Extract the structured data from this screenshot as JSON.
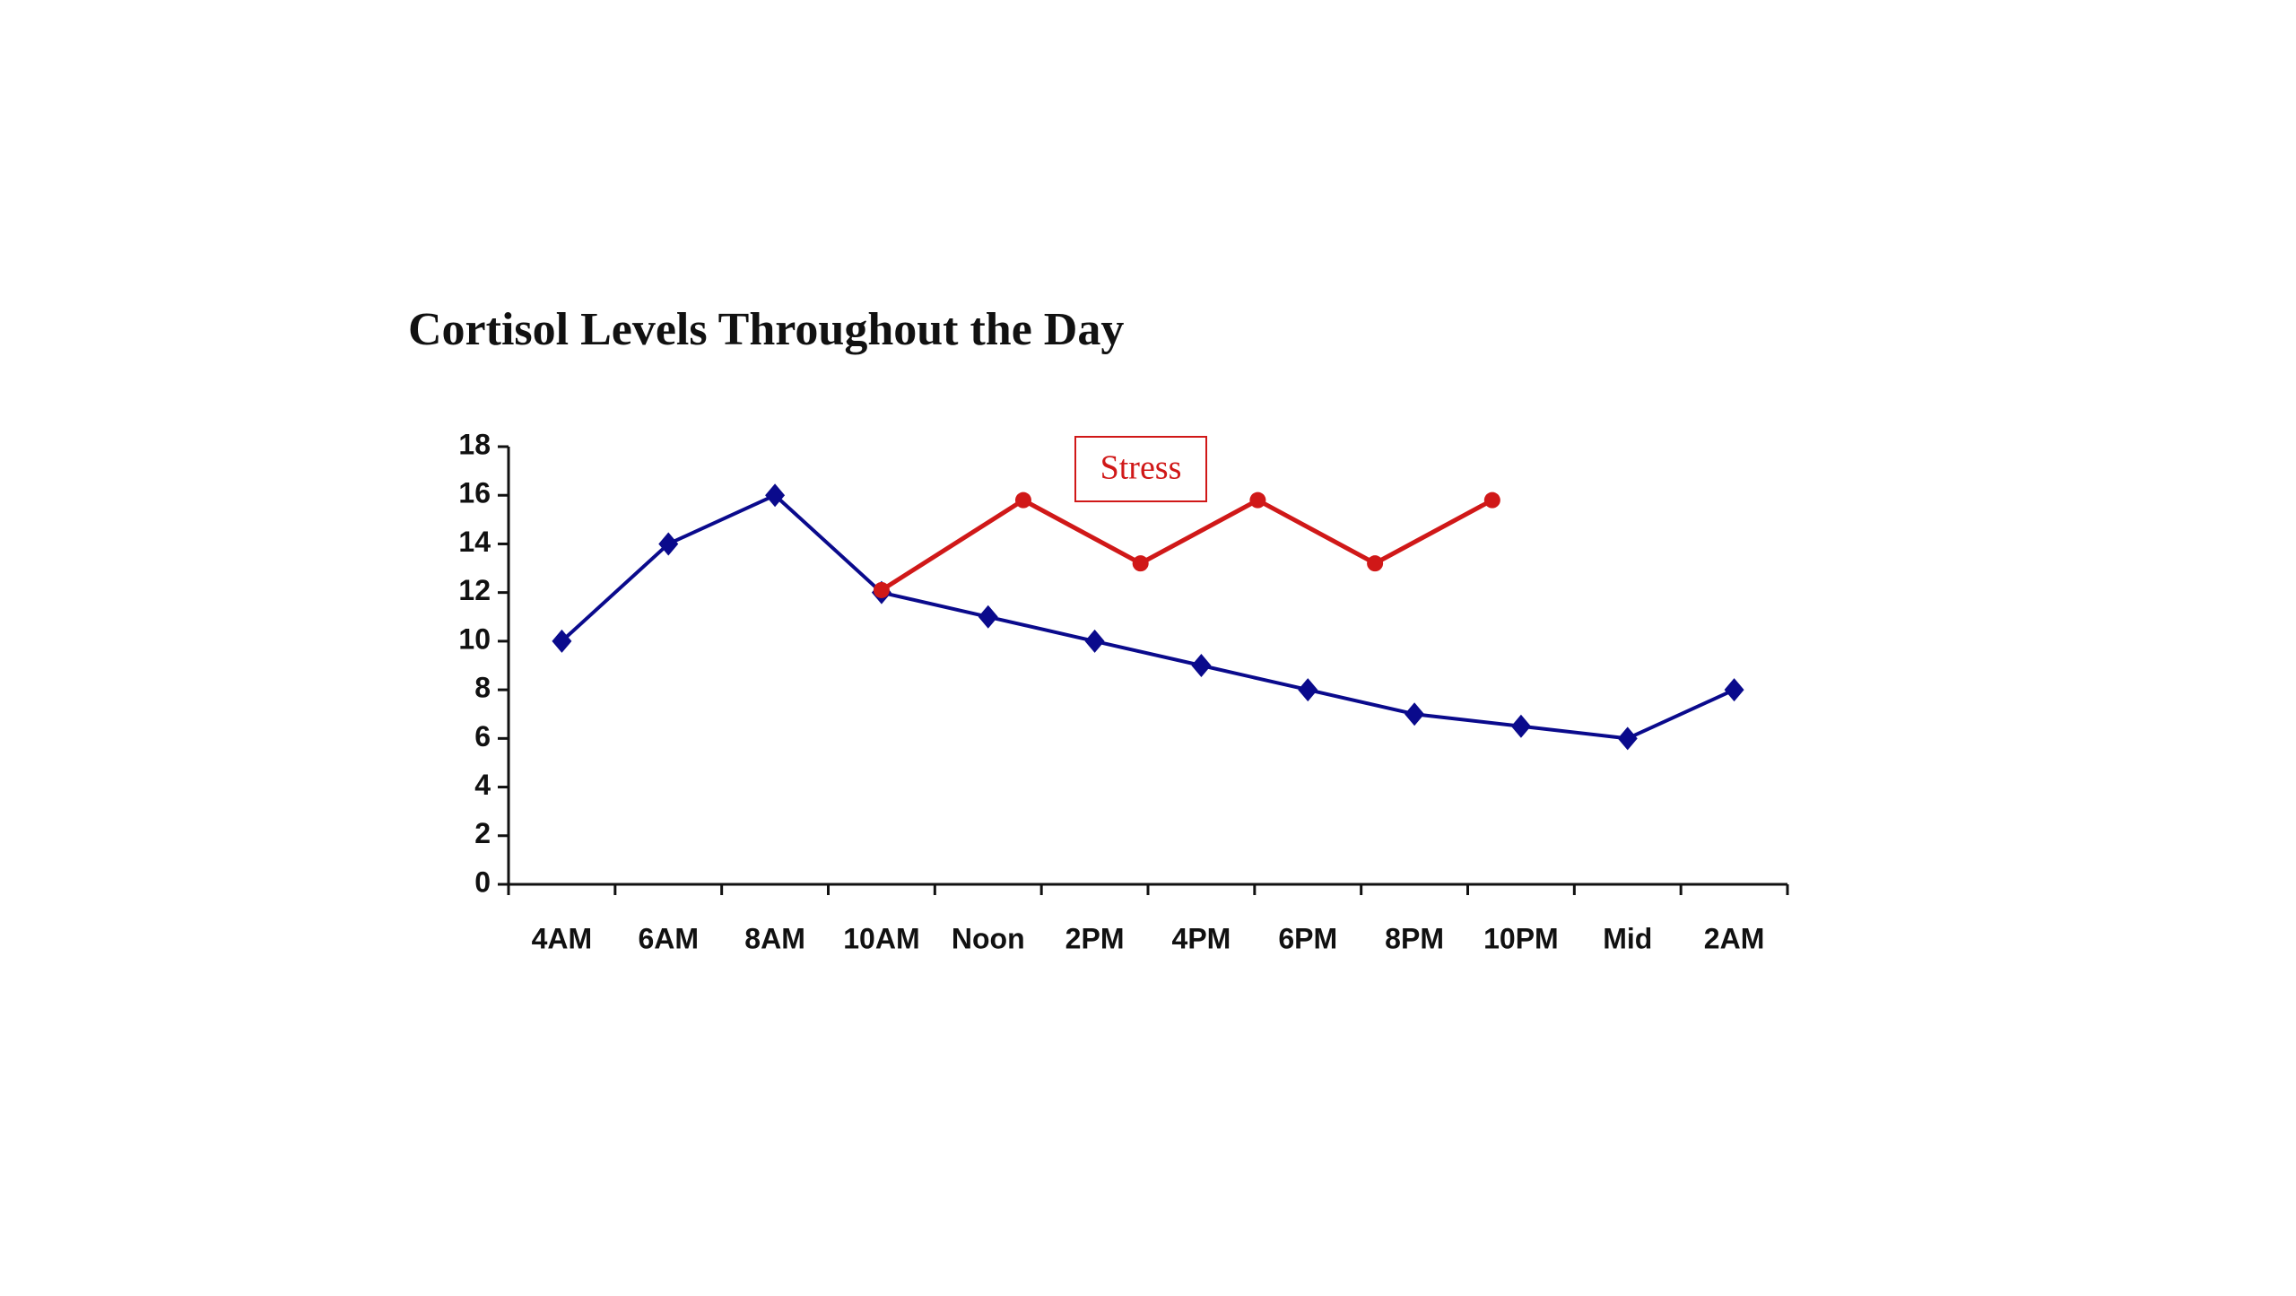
{
  "chart_data": {
    "type": "line",
    "title": "Cortisol Levels Throughout the Day",
    "categories": [
      "4AM",
      "6AM",
      "8AM",
      "10AM",
      "Noon",
      "2PM",
      "4PM",
      "6PM",
      "8PM",
      "10PM",
      "Mid",
      "2AM"
    ],
    "series": [
      {
        "color": "#0a0a8c",
        "marker": "diamond",
        "values": [
          10,
          14,
          16,
          12,
          11,
          10,
          9,
          8,
          7,
          6.5,
          6,
          8
        ]
      },
      {
        "name": "Stress",
        "color": "#d01818",
        "marker": "circle",
        "x": [
          3,
          4.33,
          5.43,
          6.53,
          7.63,
          8.73
        ],
        "values": [
          12.1,
          15.8,
          13.2,
          15.8,
          13.2,
          15.8
        ]
      }
    ],
    "ylim": [
      0,
      18
    ],
    "yticks": [
      0,
      2,
      4,
      6,
      8,
      10,
      12,
      14,
      16,
      18
    ],
    "grid": false
  }
}
